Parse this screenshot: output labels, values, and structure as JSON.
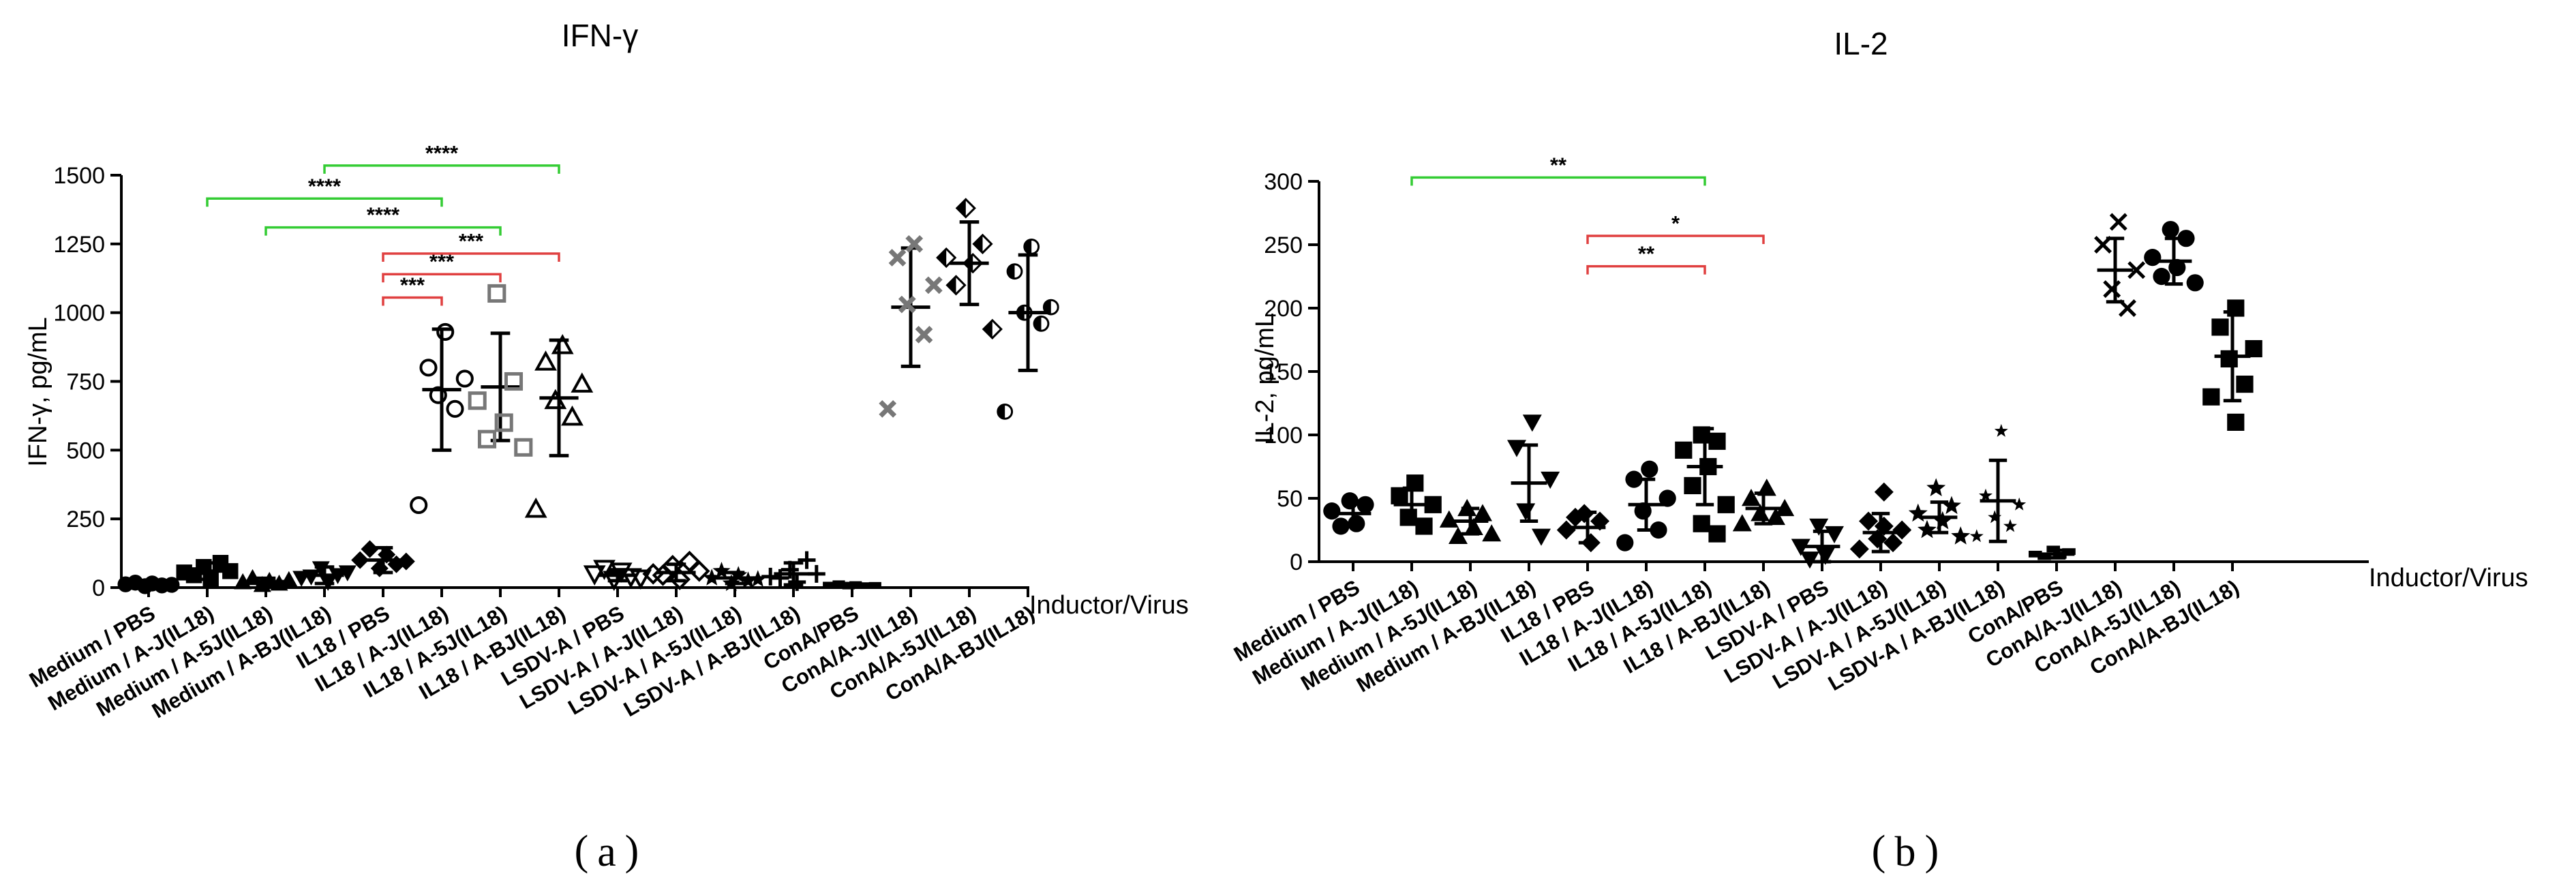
{
  "chart_data": [
    {
      "panel_label": "a",
      "type": "scatter",
      "title": "IFN-γ",
      "ylabel": "IFN-γ,  pg/mL",
      "xlabel": "Inductor/Virus",
      "ylim": [
        0,
        1500
      ],
      "yticks": [
        "0",
        "250",
        "500",
        "750",
        "1000",
        "1250",
        "1500"
      ],
      "categories": [
        "Medium / PBS",
        "Medium / A-J(IL18)",
        "Medium / A-5J(IL18)",
        "Medium / A-BJ(IL18)",
        "IL18 / PBS",
        "IL18 / A-J(IL18)",
        "IL18 / A-5J(IL18)",
        "IL18 / A-BJ(IL18)",
        "LSDV-A / PBS",
        "LSDV-A / A-J(IL18)",
        "LSDV-A / A-5J(IL18)",
        "LSDV-A / A-BJ(IL18)",
        "ConA/PBS",
        "ConA/A-J(IL18)",
        "ConA/A-5J(IL18)",
        "ConA/A-BJ(IL18)"
      ],
      "series": [
        {
          "name": "Medium / PBS",
          "marker": "circle",
          "color": "#000000",
          "mean": 12,
          "sd": 8,
          "points": [
            5,
            8,
            12,
            15,
            18,
            10
          ]
        },
        {
          "name": "Medium / A-J(IL18)",
          "marker": "square",
          "color": "#000000",
          "mean": 60,
          "sd": 30,
          "points": [
            30,
            45,
            60,
            75,
            90,
            55
          ]
        },
        {
          "name": "Medium / A-5J(IL18)",
          "marker": "triangle",
          "color": "#000000",
          "mean": 22,
          "sd": 12,
          "points": [
            10,
            15,
            20,
            25,
            35,
            28
          ]
        },
        {
          "name": "Medium / A-BJ(IL18)",
          "marker": "triangle-down",
          "color": "#000000",
          "mean": 45,
          "sd": 30,
          "points": [
            20,
            40,
            55,
            70,
            45,
            35
          ]
        },
        {
          "name": "IL18 / PBS",
          "marker": "diamond",
          "color": "#000000",
          "mean": 100,
          "sd": 45,
          "points": [
            70,
            85,
            100,
            120,
            140,
            95
          ]
        },
        {
          "name": "IL18 / A-J(IL18)",
          "marker": "open-circle",
          "color": "#000000",
          "mean": 720,
          "sd": 220,
          "points": [
            930,
            800,
            760,
            700,
            650,
            300
          ]
        },
        {
          "name": "IL18 / A-5J(IL18)",
          "marker": "open-square",
          "color": "#777777",
          "mean": 730,
          "sd": 195,
          "points": [
            1070,
            750,
            680,
            600,
            540,
            510
          ]
        },
        {
          "name": "IL18 / A-BJ(IL18)",
          "marker": "open-triangle",
          "color": "#000000",
          "mean": 690,
          "sd": 210,
          "points": [
            880,
            820,
            740,
            680,
            620,
            285
          ]
        },
        {
          "name": "LSDV-A / PBS",
          "marker": "open-triangle-down",
          "color": "#000000",
          "mean": 45,
          "sd": 20,
          "points": [
            30,
            40,
            50,
            60,
            70,
            35
          ]
        },
        {
          "name": "LSDV-A / A-J(IL18)",
          "marker": "open-diamond",
          "color": "#000000",
          "mean": 55,
          "sd": 30,
          "points": [
            30,
            45,
            60,
            80,
            95,
            50
          ]
        },
        {
          "name": "LSDV-A / A-5J(IL18)",
          "marker": "star",
          "color": "#000000",
          "mean": 35,
          "sd": 20,
          "points": [
            15,
            25,
            35,
            45,
            60,
            30
          ]
        },
        {
          "name": "LSDV-A / A-BJ(IL18)",
          "marker": "plus",
          "color": "#000000",
          "mean": 50,
          "sd": 40,
          "points": [
            20,
            35,
            50,
            65,
            100,
            40
          ]
        },
        {
          "name": "ConA/PBS",
          "marker": "dot",
          "color": "#000000",
          "mean": 10,
          "sd": 5,
          "points": [
            5,
            8,
            10,
            12,
            15,
            9
          ]
        },
        {
          "name": "ConA/A-J(IL18)",
          "marker": "cross",
          "color": "#777777",
          "mean": 1020,
          "sd": 215,
          "points": [
            1250,
            1200,
            1100,
            1030,
            920,
            650
          ]
        },
        {
          "name": "ConA/A-5J(IL18)",
          "marker": "half-diamond",
          "color": "#000000",
          "mean": 1180,
          "sd": 150,
          "points": [
            1380,
            1250,
            1200,
            1180,
            1100,
            940
          ]
        },
        {
          "name": "ConA/A-BJ(IL18)",
          "marker": "half-circle",
          "color": "#000000",
          "mean": 1000,
          "sd": 210,
          "points": [
            1240,
            1150,
            1020,
            1000,
            960,
            640
          ]
        }
      ],
      "significance": [
        {
          "from": 1,
          "to": 5,
          "label": "****",
          "color": "#33cc33",
          "y": 1415
        },
        {
          "from": 2,
          "to": 6,
          "label": "****",
          "color": "#33cc33",
          "y": 1310
        },
        {
          "from": 3,
          "to": 7,
          "label": "****",
          "color": "#33cc33",
          "y": 1535
        },
        {
          "from": 4,
          "to": 5,
          "label": "***",
          "color": "#e04040",
          "y": 1055
        },
        {
          "from": 4,
          "to": 6,
          "label": "***",
          "color": "#e04040",
          "y": 1140
        },
        {
          "from": 4,
          "to": 7,
          "label": "***",
          "color": "#e04040",
          "y": 1215
        }
      ]
    },
    {
      "panel_label": "b",
      "type": "scatter",
      "title": "IL-2",
      "ylabel": "IL-2,  pg/mL",
      "xlabel": "Inductor/Virus",
      "ylim": [
        0,
        300
      ],
      "yticks": [
        "0",
        "50",
        "100",
        "150",
        "200",
        "250",
        "300"
      ],
      "categories": [
        "Medium / PBS",
        "Medium / A-J(IL18)",
        "Medium / A-5J(IL18)",
        "Medium / A-BJ(IL18)",
        "IL18 / PBS",
        "IL18 / A-J(IL18)",
        "IL18 / A-5J(IL18)",
        "IL18 / A-BJ(IL18)",
        "LSDV-A / PBS",
        "LSDV-A / A-J(IL18)",
        "LSDV-A / A-5J(IL18)",
        "LSDV-A / A-BJ(IL18)",
        "ConA/PBS",
        "ConA/A-J(IL18)",
        "ConA/A-5J(IL18)",
        "ConA/A-BJ(IL18)"
      ],
      "series": [
        {
          "name": "Medium / PBS",
          "marker": "circle",
          "color": "#000000",
          "mean": 38,
          "sd": 10,
          "points": [
            48,
            45,
            40,
            30,
            28
          ]
        },
        {
          "name": "Medium / A-J(IL18)",
          "marker": "square",
          "color": "#000000",
          "mean": 45,
          "sd": 13,
          "points": [
            62,
            52,
            45,
            35,
            28
          ]
        },
        {
          "name": "Medium / A-5J(IL18)",
          "marker": "triangle",
          "color": "#000000",
          "mean": 32,
          "sd": 10,
          "points": [
            42,
            38,
            33,
            27,
            20,
            22
          ]
        },
        {
          "name": "Medium / A-BJ(IL18)",
          "marker": "triangle-down",
          "color": "#000000",
          "mean": 62,
          "sd": 30,
          "points": [
            110,
            90,
            65,
            40,
            20
          ]
        },
        {
          "name": "IL18 / PBS",
          "marker": "diamond",
          "color": "#000000",
          "mean": 27,
          "sd": 12,
          "points": [
            38,
            32,
            25,
            15,
            35
          ]
        },
        {
          "name": "IL18 / A-J(IL18)",
          "marker": "circle",
          "color": "#000000",
          "mean": 45,
          "sd": 20,
          "points": [
            73,
            65,
            50,
            40,
            25,
            15
          ]
        },
        {
          "name": "IL18 / A-5J(IL18)",
          "marker": "square",
          "color": "#000000",
          "mean": 75,
          "sd": 30,
          "points": [
            100,
            95,
            88,
            75,
            60,
            45,
            30,
            22
          ]
        },
        {
          "name": "IL18 / A-BJ(IL18)",
          "marker": "triangle",
          "color": "#000000",
          "mean": 42,
          "sd": 12,
          "points": [
            58,
            50,
            42,
            38,
            35,
            30
          ]
        },
        {
          "name": "LSDV-A / PBS",
          "marker": "triangle-down",
          "color": "#000000",
          "mean": 12,
          "sd": 12,
          "points": [
            28,
            22,
            12,
            5,
            2
          ]
        },
        {
          "name": "LSDV-A / A-J(IL18)",
          "marker": "diamond",
          "color": "#000000",
          "mean": 23,
          "sd": 15,
          "points": [
            55,
            32,
            25,
            18,
            15,
            10,
            28
          ]
        },
        {
          "name": "LSDV-A / A-5J(IL18)",
          "marker": "star",
          "color": "#000000",
          "mean": 35,
          "sd": 12,
          "points": [
            58,
            44,
            38,
            32,
            25,
            20
          ]
        },
        {
          "name": "LSDV-A / A-BJ(IL18)",
          "marker": "small-star",
          "color": "#000000",
          "mean": 48,
          "sd": 32,
          "points": [
            103,
            52,
            45,
            35,
            28,
            20
          ]
        },
        {
          "name": "ConA/PBS",
          "marker": "dot",
          "color": "#000000",
          "mean": 6,
          "sd": 3,
          "points": [
            10,
            8,
            6,
            5,
            4
          ]
        },
        {
          "name": "ConA/A-J(IL18)",
          "marker": "x",
          "color": "#000000",
          "mean": 230,
          "sd": 25,
          "points": [
            268,
            250,
            230,
            215,
            200
          ]
        },
        {
          "name": "ConA/A-5J(IL18)",
          "marker": "circle",
          "color": "#000000",
          "mean": 237,
          "sd": 18,
          "points": [
            262,
            255,
            240,
            232,
            225,
            220
          ]
        },
        {
          "name": "ConA/A-BJ(IL18)",
          "marker": "square",
          "color": "#000000",
          "mean": 162,
          "sd": 35,
          "points": [
            200,
            185,
            168,
            160,
            140,
            130,
            110
          ]
        }
      ],
      "significance": [
        {
          "from": 1,
          "to": 6,
          "label": "**",
          "color": "#33cc33",
          "y": 303
        },
        {
          "from": 4,
          "to": 7,
          "label": "*",
          "color": "#e04040",
          "y": 257
        },
        {
          "from": 4,
          "to": 6,
          "label": "**",
          "color": "#e04040",
          "y": 233
        }
      ]
    }
  ]
}
